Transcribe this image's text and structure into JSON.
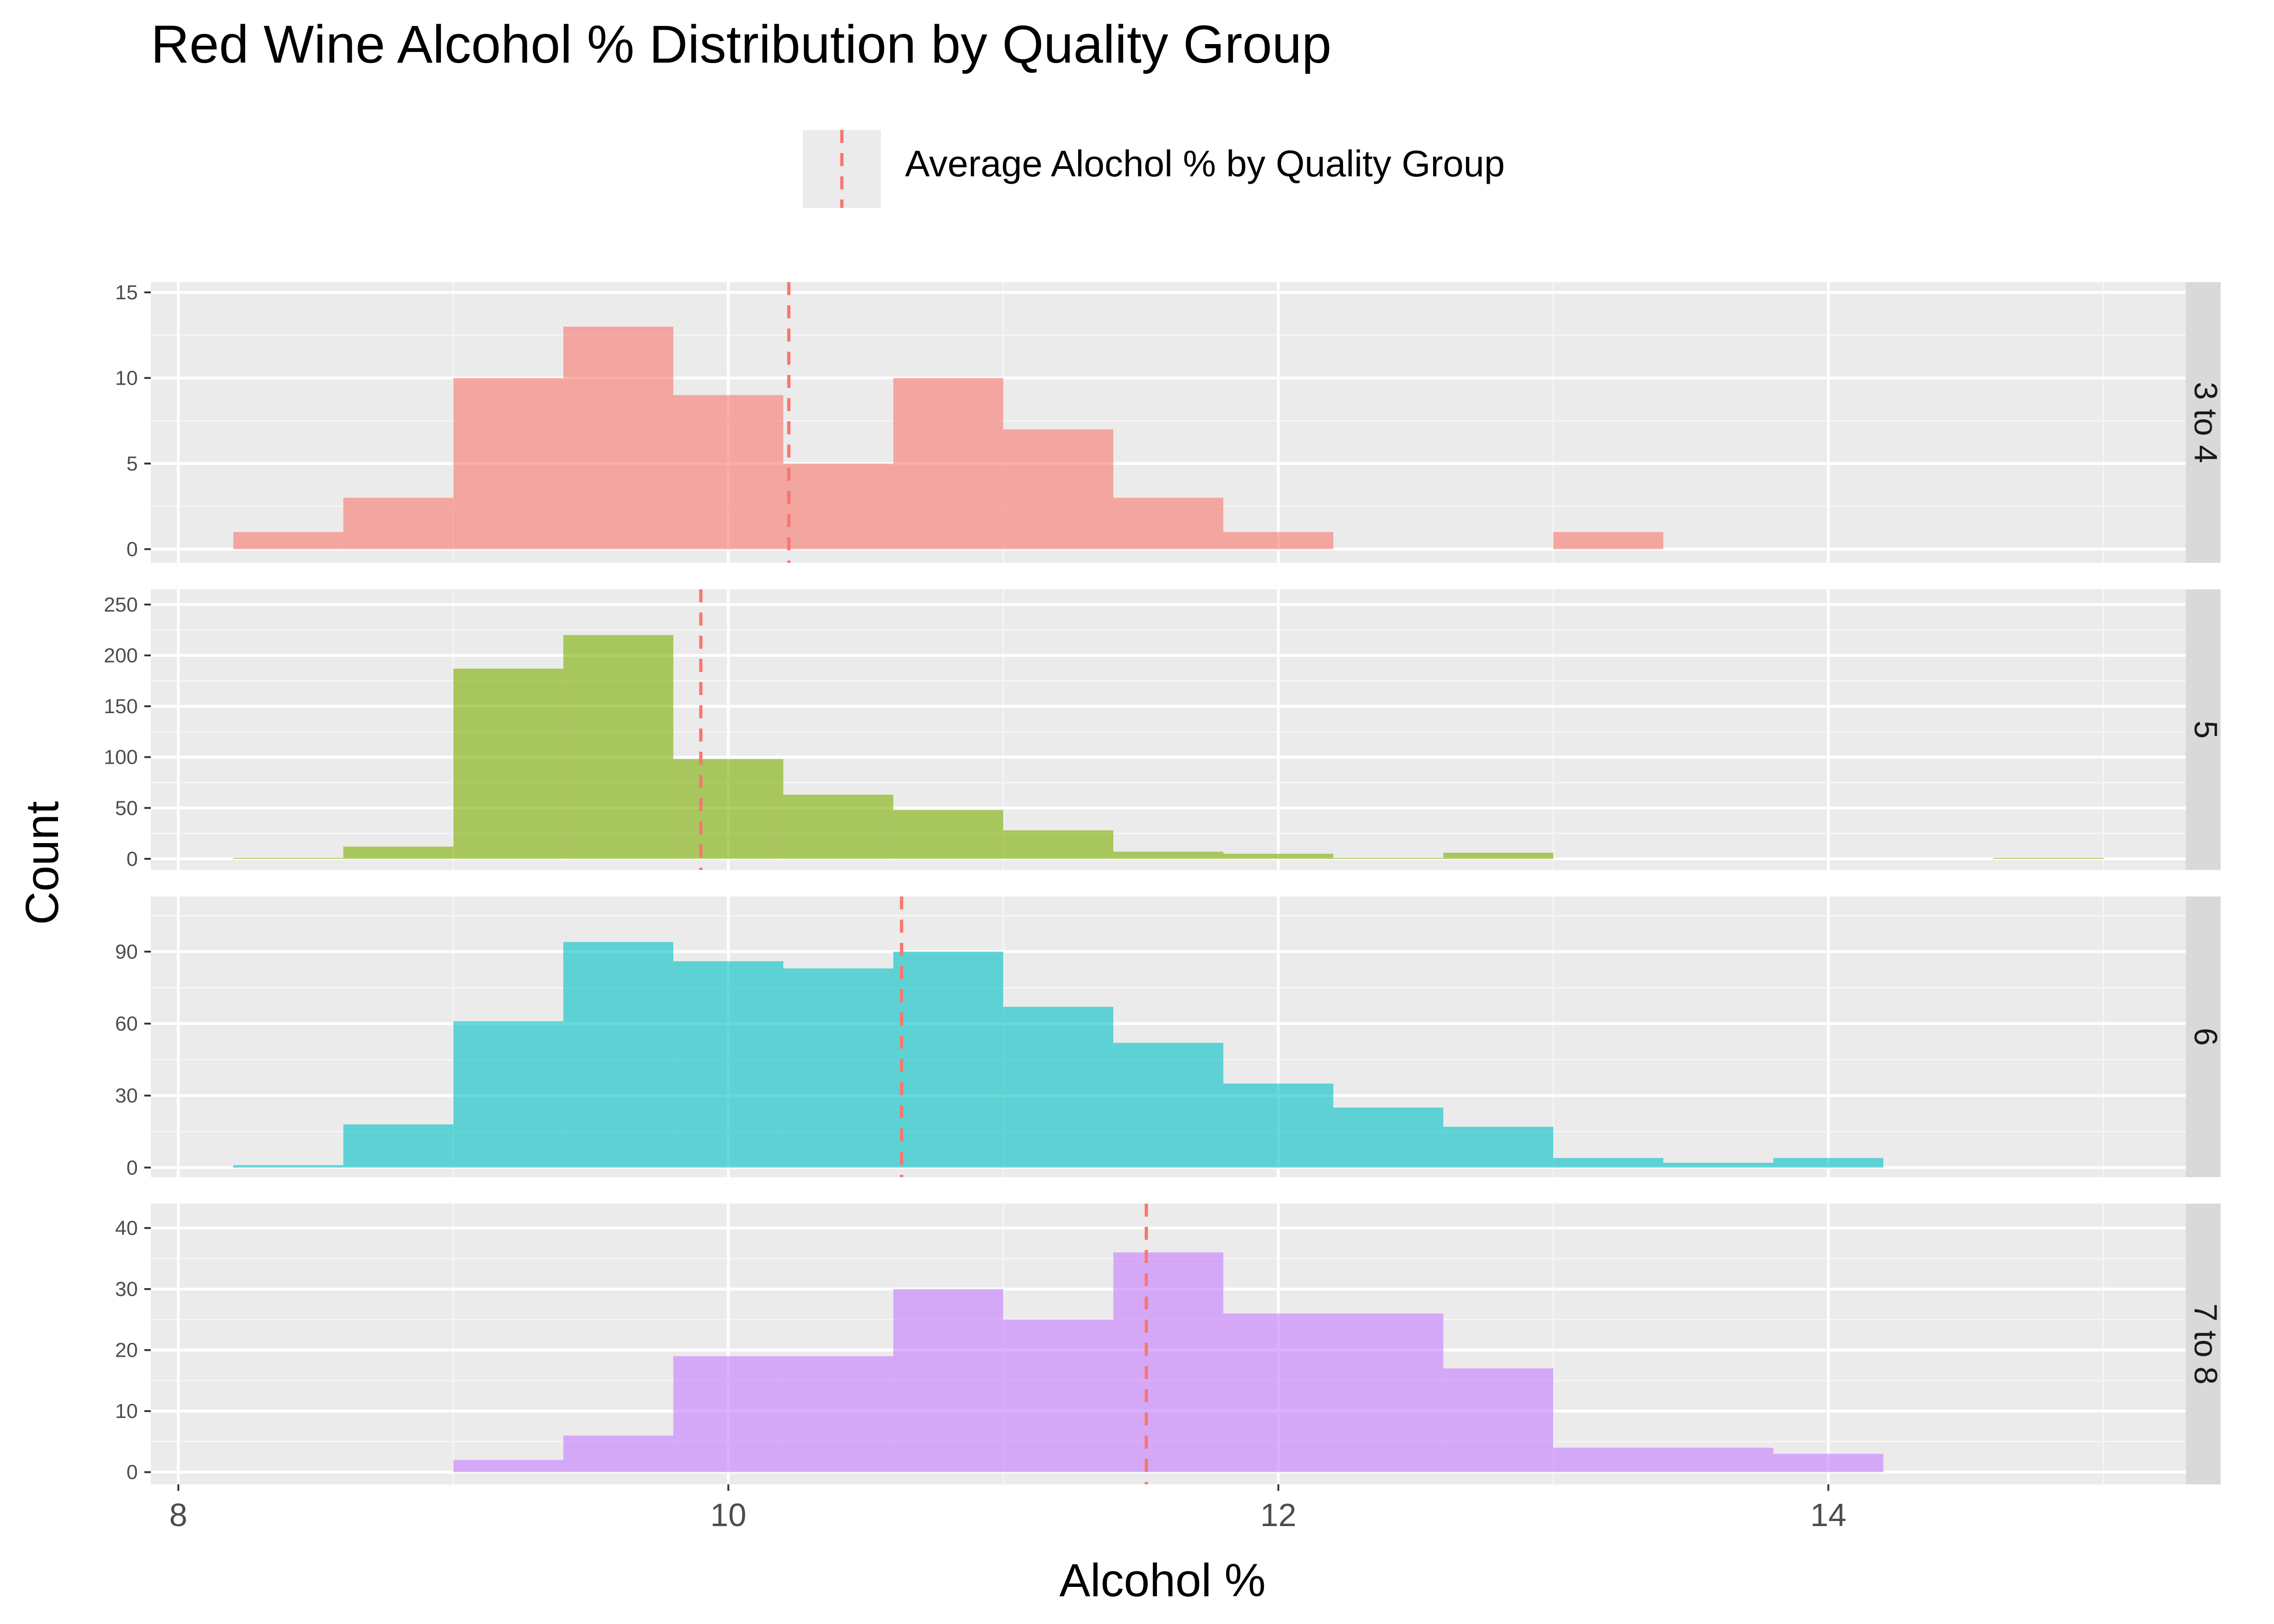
{
  "chart_data": {
    "type": "histogram",
    "title": "Red Wine Alcohol % Distribution by Quality Group",
    "xlabel": "Alcohol %",
    "ylabel": "Count",
    "xlim": [
      7.9,
      15.3
    ],
    "x_ticks": [
      8,
      10,
      12,
      14
    ],
    "bin_width": 0.4,
    "bin_edges": [
      8.2,
      8.6,
      9.0,
      9.4,
      9.8,
      10.2,
      10.6,
      11.0,
      11.4,
      11.8,
      12.2,
      12.6,
      13.0,
      13.4,
      13.8,
      14.2,
      14.6,
      15.0
    ],
    "legend": {
      "position": "top",
      "label": "Average Alochol % by Quality Group",
      "line_color": "#F8766D",
      "line_style": "dashed"
    },
    "grid": true,
    "facets": [
      {
        "label": "3 to 4",
        "color": "#F8766D",
        "ylim": [
          -0.8,
          15.6
        ],
        "y_ticks": [
          0,
          5,
          10,
          15
        ],
        "counts": [
          1,
          3,
          10,
          13,
          9,
          5,
          10,
          7,
          3,
          1,
          0,
          0,
          1,
          0,
          0,
          0,
          0
        ],
        "mean": 10.22
      },
      {
        "label": "5",
        "color": "#7CAE00",
        "ylim": [
          -11,
          265
        ],
        "y_ticks": [
          0,
          50,
          100,
          150,
          200,
          250
        ],
        "counts": [
          1,
          12,
          187,
          220,
          98,
          63,
          48,
          28,
          7,
          5,
          1,
          6,
          0,
          0,
          0,
          0,
          1
        ],
        "mean": 9.9
      },
      {
        "label": "6",
        "color": "#00BFC4",
        "ylim": [
          -4,
          113
        ],
        "y_ticks": [
          0,
          30,
          60,
          90
        ],
        "counts": [
          1,
          18,
          61,
          94,
          86,
          83,
          90,
          67,
          52,
          35,
          25,
          17,
          4,
          2,
          4,
          0,
          0
        ],
        "mean": 10.63
      },
      {
        "label": "7 to 8",
        "color": "#C77CFF",
        "ylim": [
          -2,
          44
        ],
        "y_ticks": [
          0,
          10,
          20,
          30,
          40
        ],
        "counts": [
          0,
          0,
          2,
          6,
          19,
          19,
          30,
          25,
          36,
          26,
          26,
          17,
          4,
          4,
          3,
          0,
          0
        ],
        "mean": 11.52
      }
    ]
  }
}
